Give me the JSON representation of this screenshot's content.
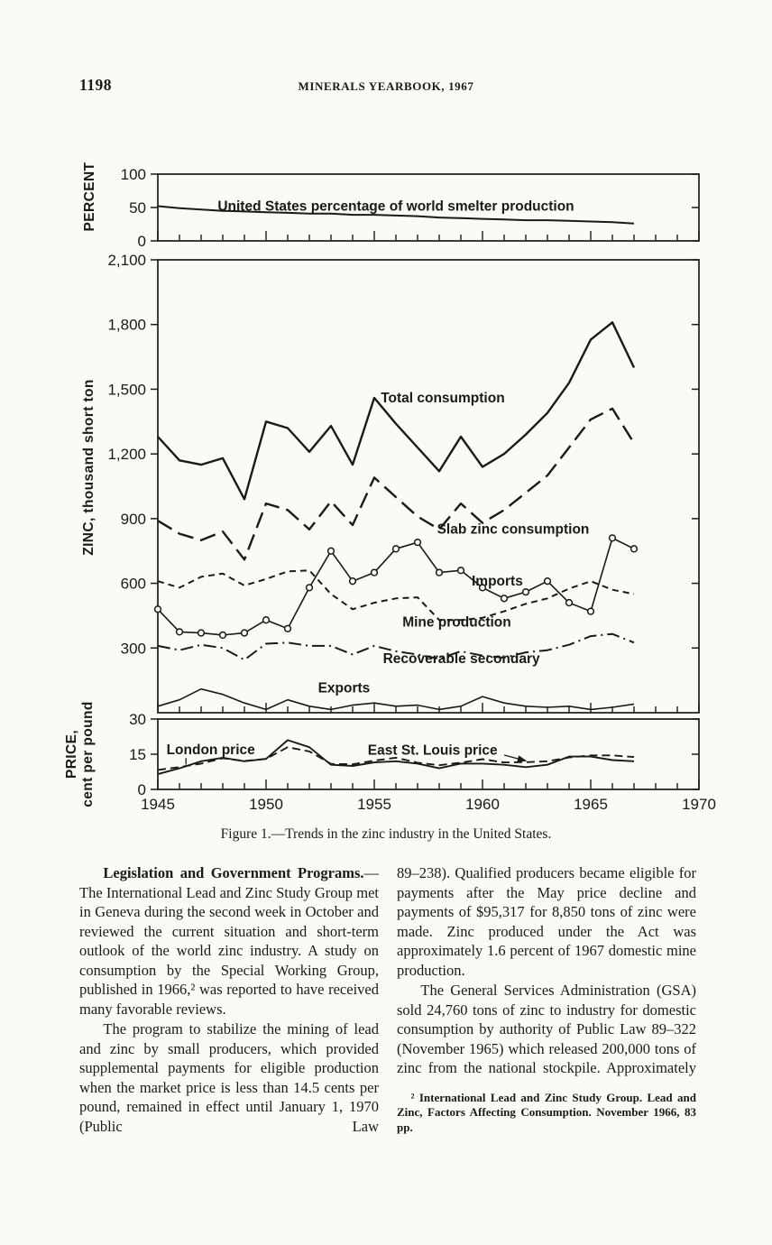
{
  "page": {
    "number": "1198",
    "running_title": "MINERALS YEARBOOK, 1967"
  },
  "figure": {
    "caption": "Figure 1.—Trends in the zinc industry in the United States."
  },
  "article": {
    "left": {
      "p1_lead": "Legislation and Government Programs.",
      "p1_rest": "—The International Lead and Zinc Study Group met in Geneva during the second week in October and reviewed the current situation and short-term outlook of the world zinc industry. A study on consumption by the Special Working Group, published in 1966,² was reported to have received many favorable reviews.",
      "p2": "The program to stabilize the mining of lead and zinc by small producers, which provided supplemental payments for eligible production when the market price is less than 14.5 cents per pound, remained in effect until January 1, 1970 (Public Law"
    },
    "right": {
      "p1": "89–238). Qualified producers became eligible for payments after the May price decline and payments of $95,317 for 8,850 tons of zinc were made. Zinc produced under the Act was approximately 1.6 percent of 1967 domestic mine production.",
      "p2": "The General Services Administration (GSA) sold 24,760 tons of zinc to industry for domestic consumption by authority of Public Law 89–322 (November 1965) which released 200,000 tons of zinc from the national stockpile. Approximately",
      "footnote": "² International Lead and Zinc Study Group. Lead and Zinc, Factors Affecting Consumption. November 1966, 83 pp."
    }
  },
  "chart_data": [
    {
      "id": "percent",
      "type": "line",
      "title": "",
      "ylabel": "PERCENT",
      "ylim": [
        0,
        100
      ],
      "yticks": [
        {
          "v": 0,
          "label": "0"
        },
        {
          "v": 50,
          "label": "50"
        },
        {
          "v": 100,
          "label": "100"
        }
      ],
      "xlim": [
        1945,
        1970
      ],
      "x": [
        1945,
        1946,
        1947,
        1948,
        1949,
        1950,
        1951,
        1952,
        1953,
        1954,
        1955,
        1956,
        1957,
        1958,
        1959,
        1960,
        1961,
        1962,
        1963,
        1964,
        1965,
        1966,
        1967
      ],
      "series": [
        {
          "name": "United States percentage of world smelter production",
          "style": "solid",
          "width": 2,
          "values": [
            52,
            49,
            47,
            45,
            44,
            43,
            42,
            41,
            41,
            39,
            39,
            38,
            37,
            35,
            34,
            33,
            32,
            31,
            31,
            30,
            29,
            28,
            26
          ],
          "label": {
            "x": 1956,
            "y": 45,
            "anchor": "middle"
          }
        }
      ]
    },
    {
      "id": "zinc",
      "type": "line",
      "title": "",
      "ylabel": "ZINC, thousand short ton",
      "ylim": [
        0,
        2100
      ],
      "yticks": [
        {
          "v": 300,
          "label": "300"
        },
        {
          "v": 600,
          "label": "600"
        },
        {
          "v": 900,
          "label": "900"
        },
        {
          "v": 1200,
          "label": "1,200"
        },
        {
          "v": 1500,
          "label": "1,500"
        },
        {
          "v": 1800,
          "label": "1,800"
        },
        {
          "v": 2100,
          "label": "2,100"
        }
      ],
      "xlim": [
        1945,
        1970
      ],
      "x": [
        1945,
        1946,
        1947,
        1948,
        1949,
        1950,
        1951,
        1952,
        1953,
        1954,
        1955,
        1956,
        1957,
        1958,
        1959,
        1960,
        1961,
        1962,
        1963,
        1964,
        1965,
        1966,
        1967
      ],
      "series": [
        {
          "name": "Total consumption",
          "style": "solid",
          "width": 2.4,
          "values": [
            1280,
            1170,
            1150,
            1180,
            990,
            1350,
            1320,
            1210,
            1330,
            1150,
            1460,
            1340,
            1230,
            1120,
            1280,
            1140,
            1200,
            1290,
            1390,
            1530,
            1730,
            1810,
            1600
          ],
          "label": {
            "x": 1955.3,
            "y": 1440,
            "anchor": "start"
          }
        },
        {
          "name": "Slab zinc consumption",
          "style": "longdash",
          "width": 2.4,
          "values": [
            890,
            830,
            800,
            840,
            710,
            970,
            940,
            850,
            980,
            870,
            1090,
            1000,
            910,
            850,
            970,
            880,
            940,
            1020,
            1100,
            1230,
            1360,
            1410,
            1250
          ],
          "label": {
            "x": 1957.9,
            "y": 830,
            "anchor": "start"
          }
        },
        {
          "name": "Imports",
          "style": "solid",
          "width": 1.6,
          "markers": "circle",
          "values": [
            480,
            375,
            370,
            360,
            370,
            430,
            390,
            580,
            750,
            610,
            650,
            760,
            790,
            650,
            660,
            580,
            530,
            560,
            610,
            510,
            470,
            810,
            760
          ],
          "label": {
            "x": 1959.5,
            "y": 590,
            "anchor": "start"
          }
        },
        {
          "name": "Mine production",
          "style": "dash",
          "width": 2,
          "values": [
            610,
            580,
            630,
            645,
            590,
            620,
            655,
            660,
            550,
            480,
            510,
            530,
            535,
            430,
            430,
            440,
            470,
            505,
            530,
            575,
            610,
            570,
            550
          ],
          "label": {
            "x": 1956.3,
            "y": 400,
            "anchor": "start"
          }
        },
        {
          "name": "Recoverable secondary",
          "style": "dashdot",
          "width": 2,
          "values": [
            310,
            290,
            315,
            300,
            245,
            320,
            325,
            310,
            310,
            270,
            310,
            285,
            270,
            250,
            285,
            265,
            255,
            280,
            290,
            315,
            355,
            365,
            325
          ],
          "label": {
            "x": 1955.4,
            "y": 230,
            "anchor": "start"
          }
        },
        {
          "name": "Exports",
          "style": "solid",
          "width": 1.6,
          "values": [
            30,
            60,
            110,
            85,
            45,
            15,
            60,
            30,
            15,
            35,
            45,
            30,
            35,
            15,
            30,
            75,
            45,
            30,
            25,
            30,
            15,
            25,
            40
          ],
          "label": {
            "x": 1952.4,
            "y": 95,
            "anchor": "start"
          }
        }
      ]
    },
    {
      "id": "price",
      "type": "line",
      "title": "",
      "ylabel": "PRICE, cent per pound",
      "ylabel_lines": [
        "PRICE,",
        "cent per pound"
      ],
      "ylim": [
        0,
        30
      ],
      "yticks": [
        {
          "v": 0,
          "label": "0"
        },
        {
          "v": 15,
          "label": "15"
        },
        {
          "v": 30,
          "label": "30"
        }
      ],
      "xlim": [
        1945,
        1970
      ],
      "xticks_labeled": [
        1945,
        1950,
        1955,
        1960,
        1965,
        1970
      ],
      "x": [
        1945,
        1946,
        1947,
        1948,
        1949,
        1950,
        1951,
        1952,
        1953,
        1954,
        1955,
        1956,
        1957,
        1958,
        1959,
        1960,
        1961,
        1962,
        1963,
        1964,
        1965,
        1966,
        1967
      ],
      "series": [
        {
          "name": "London price",
          "style": "solid",
          "width": 1.9,
          "values": [
            6.5,
            9,
            12,
            13.5,
            12,
            13,
            21,
            18,
            10.5,
            10,
            11.5,
            12,
            11,
            9,
            11,
            11,
            10.5,
            9.5,
            10.5,
            14,
            14,
            12.5,
            12
          ],
          "label": {
            "x": 1945.4,
            "y": 15,
            "anchor": "start",
            "leader": {
              "x1": 1946.3,
              "y1": 13.4,
              "x2": 1946.3,
              "y2": 10.6
            }
          }
        },
        {
          "name": "East St. Louis price",
          "style": "dash2",
          "width": 1.9,
          "values": [
            8.3,
            9.5,
            11,
            13.3,
            12.1,
            13,
            18,
            16.2,
            10.9,
            10.7,
            12.3,
            13.5,
            11.4,
            10.3,
            11.4,
            12.9,
            11.5,
            11.6,
            12,
            13.6,
            14.5,
            14.5,
            13.8
          ],
          "label": {
            "x": 1954.7,
            "y": 14.8,
            "anchor": "start",
            "leader": {
              "x1": 1961.0,
              "y1": 14.6,
              "x2": 1962.0,
              "y2": 12.2,
              "arrow": true
            }
          }
        }
      ]
    }
  ]
}
